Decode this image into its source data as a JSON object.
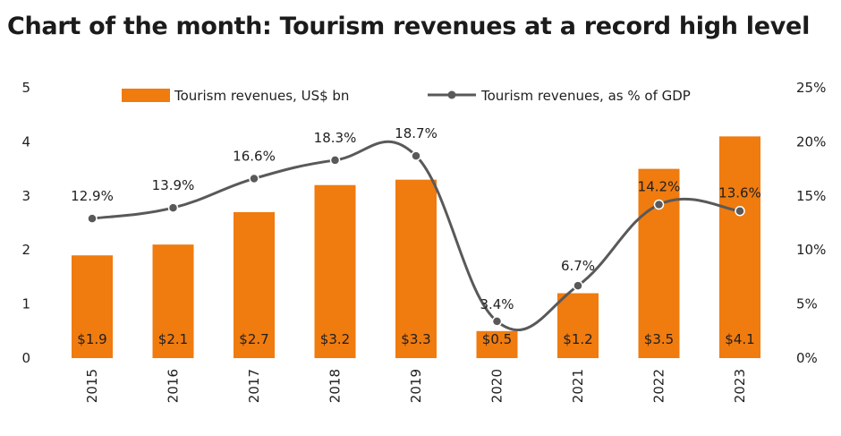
{
  "title": "Chart of the month: Tourism revenues at a record high level",
  "chart_data": {
    "type": "bar+line",
    "categories": [
      "2015",
      "2016",
      "2017",
      "2018",
      "2019",
      "2020",
      "2021",
      "2022",
      "2023"
    ],
    "series": [
      {
        "name": "Tourism revenues, US$ bn",
        "type": "bar",
        "axis": "left",
        "values": [
          1.9,
          2.1,
          2.7,
          3.2,
          3.3,
          0.5,
          1.2,
          3.5,
          4.1
        ],
        "labels": [
          "$1.9",
          "$2.1",
          "$2.7",
          "$3.2",
          "$3.3",
          "$0.5",
          "$1.2",
          "$3.5",
          "$4.1"
        ],
        "color": "#f07b0f"
      },
      {
        "name": "Tourism revenues, as % of GDP",
        "type": "line",
        "axis": "right",
        "values": [
          12.9,
          13.9,
          16.6,
          18.3,
          18.7,
          3.4,
          6.7,
          14.2,
          13.6
        ],
        "labels": [
          "12.9%",
          "13.9%",
          "16.6%",
          "18.3%",
          "18.7%",
          "3.4%",
          "6.7%",
          "14.2%",
          "13.6%"
        ],
        "color": "#595959"
      }
    ],
    "y_left": {
      "ticks": [
        "0",
        "1",
        "2",
        "3",
        "4",
        "5"
      ],
      "ylim": [
        0,
        5
      ]
    },
    "y_right": {
      "ticks": [
        "0%",
        "5%",
        "10%",
        "15%",
        "20%",
        "25%"
      ],
      "ylim": [
        0,
        25
      ]
    },
    "grid": false,
    "legend_position": "top"
  }
}
